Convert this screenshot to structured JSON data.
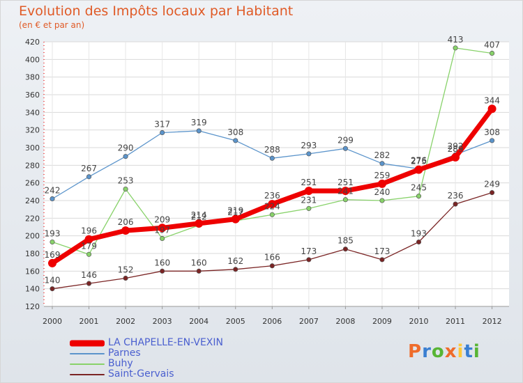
{
  "header": {
    "title": "Evolution des Impôts locaux par Habitant",
    "subtitle": "(en € et par an)"
  },
  "logo": {
    "text": "Proxiti",
    "colors": [
      "#ef6c2b",
      "#3a7fd1",
      "#58b535",
      "#ef6c2b",
      "#ffc93a",
      "#3a7fd1",
      "#58b535"
    ]
  },
  "chart_data": {
    "type": "line",
    "title": "Evolution des Impôts locaux par Habitant",
    "subtitle": "(en € et par an)",
    "x": [
      "2000",
      "2001",
      "2002",
      "2003",
      "2004",
      "2005",
      "2006",
      "2007",
      "2008",
      "2009",
      "2010",
      "2011",
      "2012"
    ],
    "ylim": [
      120,
      420
    ],
    "yticks": [
      120,
      140,
      160,
      180,
      200,
      220,
      240,
      260,
      280,
      300,
      320,
      340,
      360,
      380,
      400,
      420
    ],
    "grid": true,
    "legend_position": "bottom-left",
    "series": [
      {
        "name": "LA CHAPELLE-EN-VEXIN",
        "color": "#ee0000",
        "values": [
          169,
          196,
          206,
          209,
          214,
          219,
          236,
          251,
          251,
          259,
          275,
          289,
          344
        ]
      },
      {
        "name": "Parnes",
        "color": "#5b94cb",
        "values": [
          242,
          267,
          290,
          317,
          319,
          308,
          288,
          293,
          299,
          282,
          276,
          292,
          308
        ]
      },
      {
        "name": "Buhy",
        "color": "#88d26a",
        "values": [
          193,
          179,
          253,
          197,
          212,
          217,
          224,
          231,
          241,
          240,
          245,
          413,
          407
        ]
      },
      {
        "name": "Saint-Gervais",
        "color": "#7a2424",
        "values": [
          140,
          146,
          152,
          160,
          160,
          162,
          166,
          173,
          185,
          173,
          193,
          236,
          249
        ]
      }
    ]
  }
}
